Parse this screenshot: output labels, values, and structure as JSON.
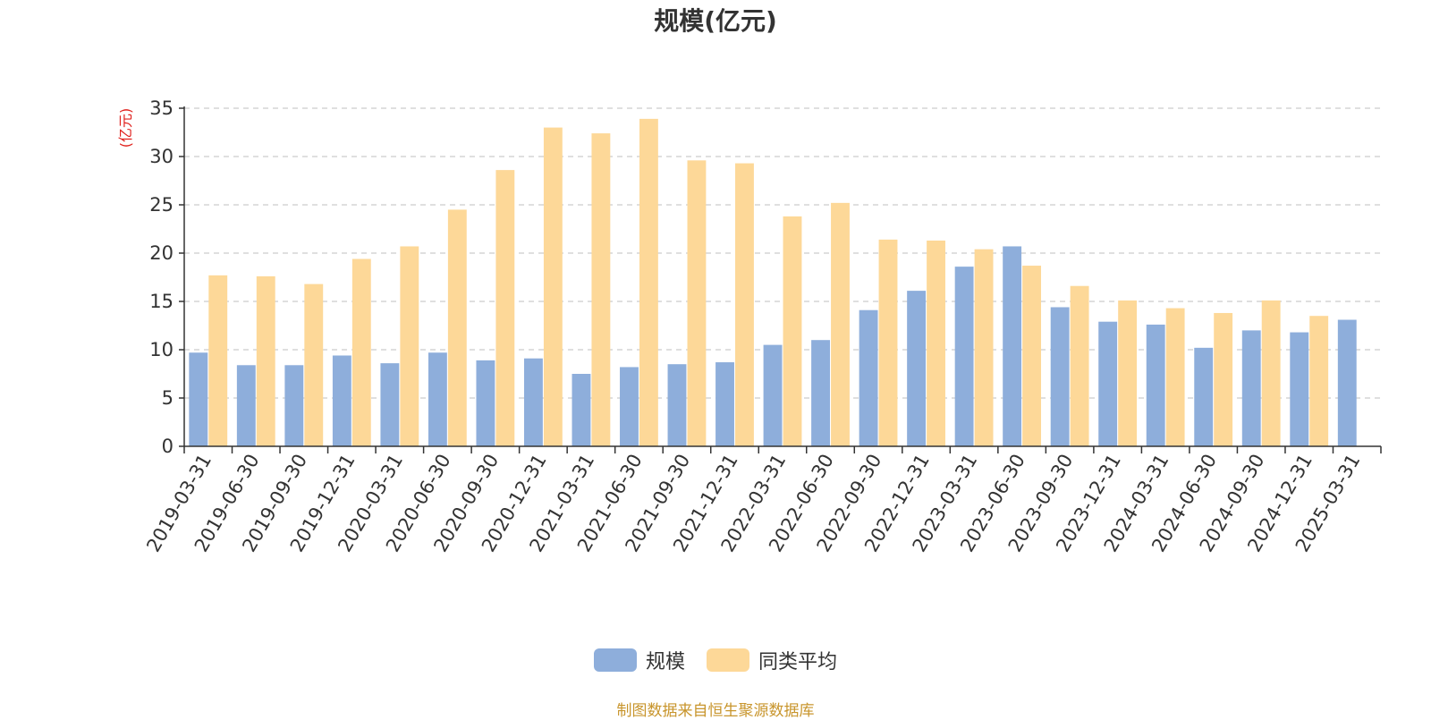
{
  "chart_data": {
    "type": "bar",
    "title": "规模(亿元)",
    "ylabel": "(亿元)",
    "xlabel": "",
    "ylim": [
      0,
      35
    ],
    "yticks": [
      0,
      5,
      10,
      15,
      20,
      25,
      30,
      35
    ],
    "grid": true,
    "legend_position": "bottom-center",
    "categories": [
      "2019-03-31",
      "2019-06-30",
      "2019-09-30",
      "2019-12-31",
      "2020-03-31",
      "2020-06-30",
      "2020-09-30",
      "2020-12-31",
      "2021-03-31",
      "2021-06-30",
      "2021-09-30",
      "2021-12-31",
      "2022-03-31",
      "2022-06-30",
      "2022-09-30",
      "2022-12-31",
      "2023-03-31",
      "2023-06-30",
      "2023-09-30",
      "2023-12-31",
      "2024-03-31",
      "2024-06-30",
      "2024-09-30",
      "2024-12-31",
      "2025-03-31"
    ],
    "series": [
      {
        "name": "规模",
        "color": "#8eaedb",
        "values": [
          9.7,
          8.4,
          8.4,
          9.4,
          8.6,
          9.7,
          8.9,
          9.1,
          7.5,
          8.2,
          8.5,
          8.7,
          10.5,
          11.0,
          14.1,
          16.1,
          18.6,
          20.7,
          14.4,
          12.9,
          12.6,
          10.2,
          12.0,
          11.8,
          13.1
        ]
      },
      {
        "name": "同类平均",
        "color": "#fdd898",
        "values": [
          17.7,
          17.6,
          16.8,
          19.4,
          20.7,
          24.5,
          28.6,
          33.0,
          32.4,
          33.9,
          29.6,
          29.3,
          23.8,
          25.2,
          21.4,
          21.3,
          20.4,
          18.7,
          16.6,
          15.1,
          14.3,
          13.8,
          15.1,
          13.5,
          null
        ]
      }
    ]
  },
  "source_note": "制图数据来自恒生聚源数据库"
}
